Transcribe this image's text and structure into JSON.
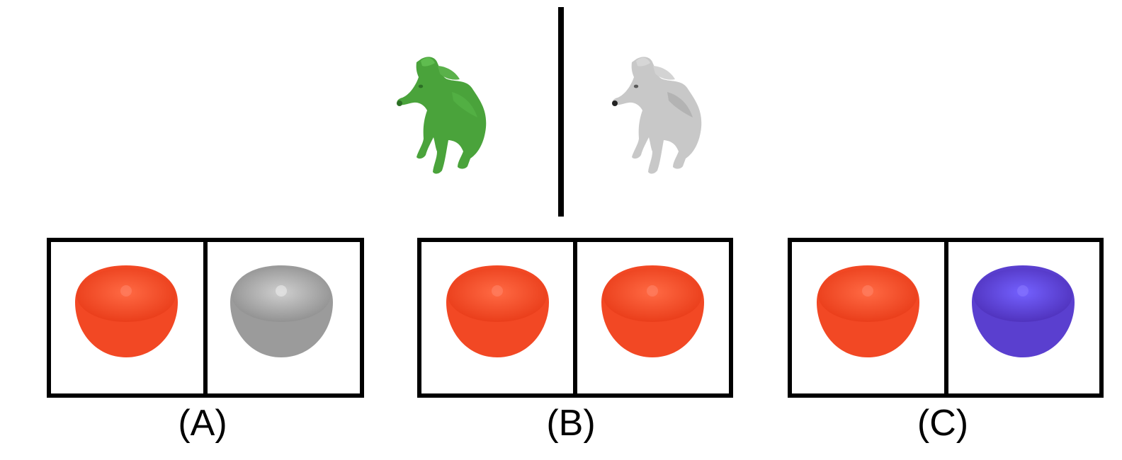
{
  "prompt": {
    "left_icon": "dog-icon",
    "left_color": "#4aa33b",
    "right_icon": "dog-icon",
    "right_color": "#c8c8c8"
  },
  "options": [
    {
      "label": "(A)",
      "left_icon": "orange-half-icon",
      "left_color": "#f24824",
      "right_icon": "orange-half-icon",
      "right_color": "#9b9b9b"
    },
    {
      "label": "(B)",
      "left_icon": "orange-half-icon",
      "left_color": "#f24824",
      "right_icon": "orange-half-icon",
      "right_color": "#f24824"
    },
    {
      "label": "(C)",
      "left_icon": "orange-half-icon",
      "left_color": "#f24824",
      "right_icon": "orange-half-icon",
      "right_color": "#5a3fcf"
    }
  ]
}
